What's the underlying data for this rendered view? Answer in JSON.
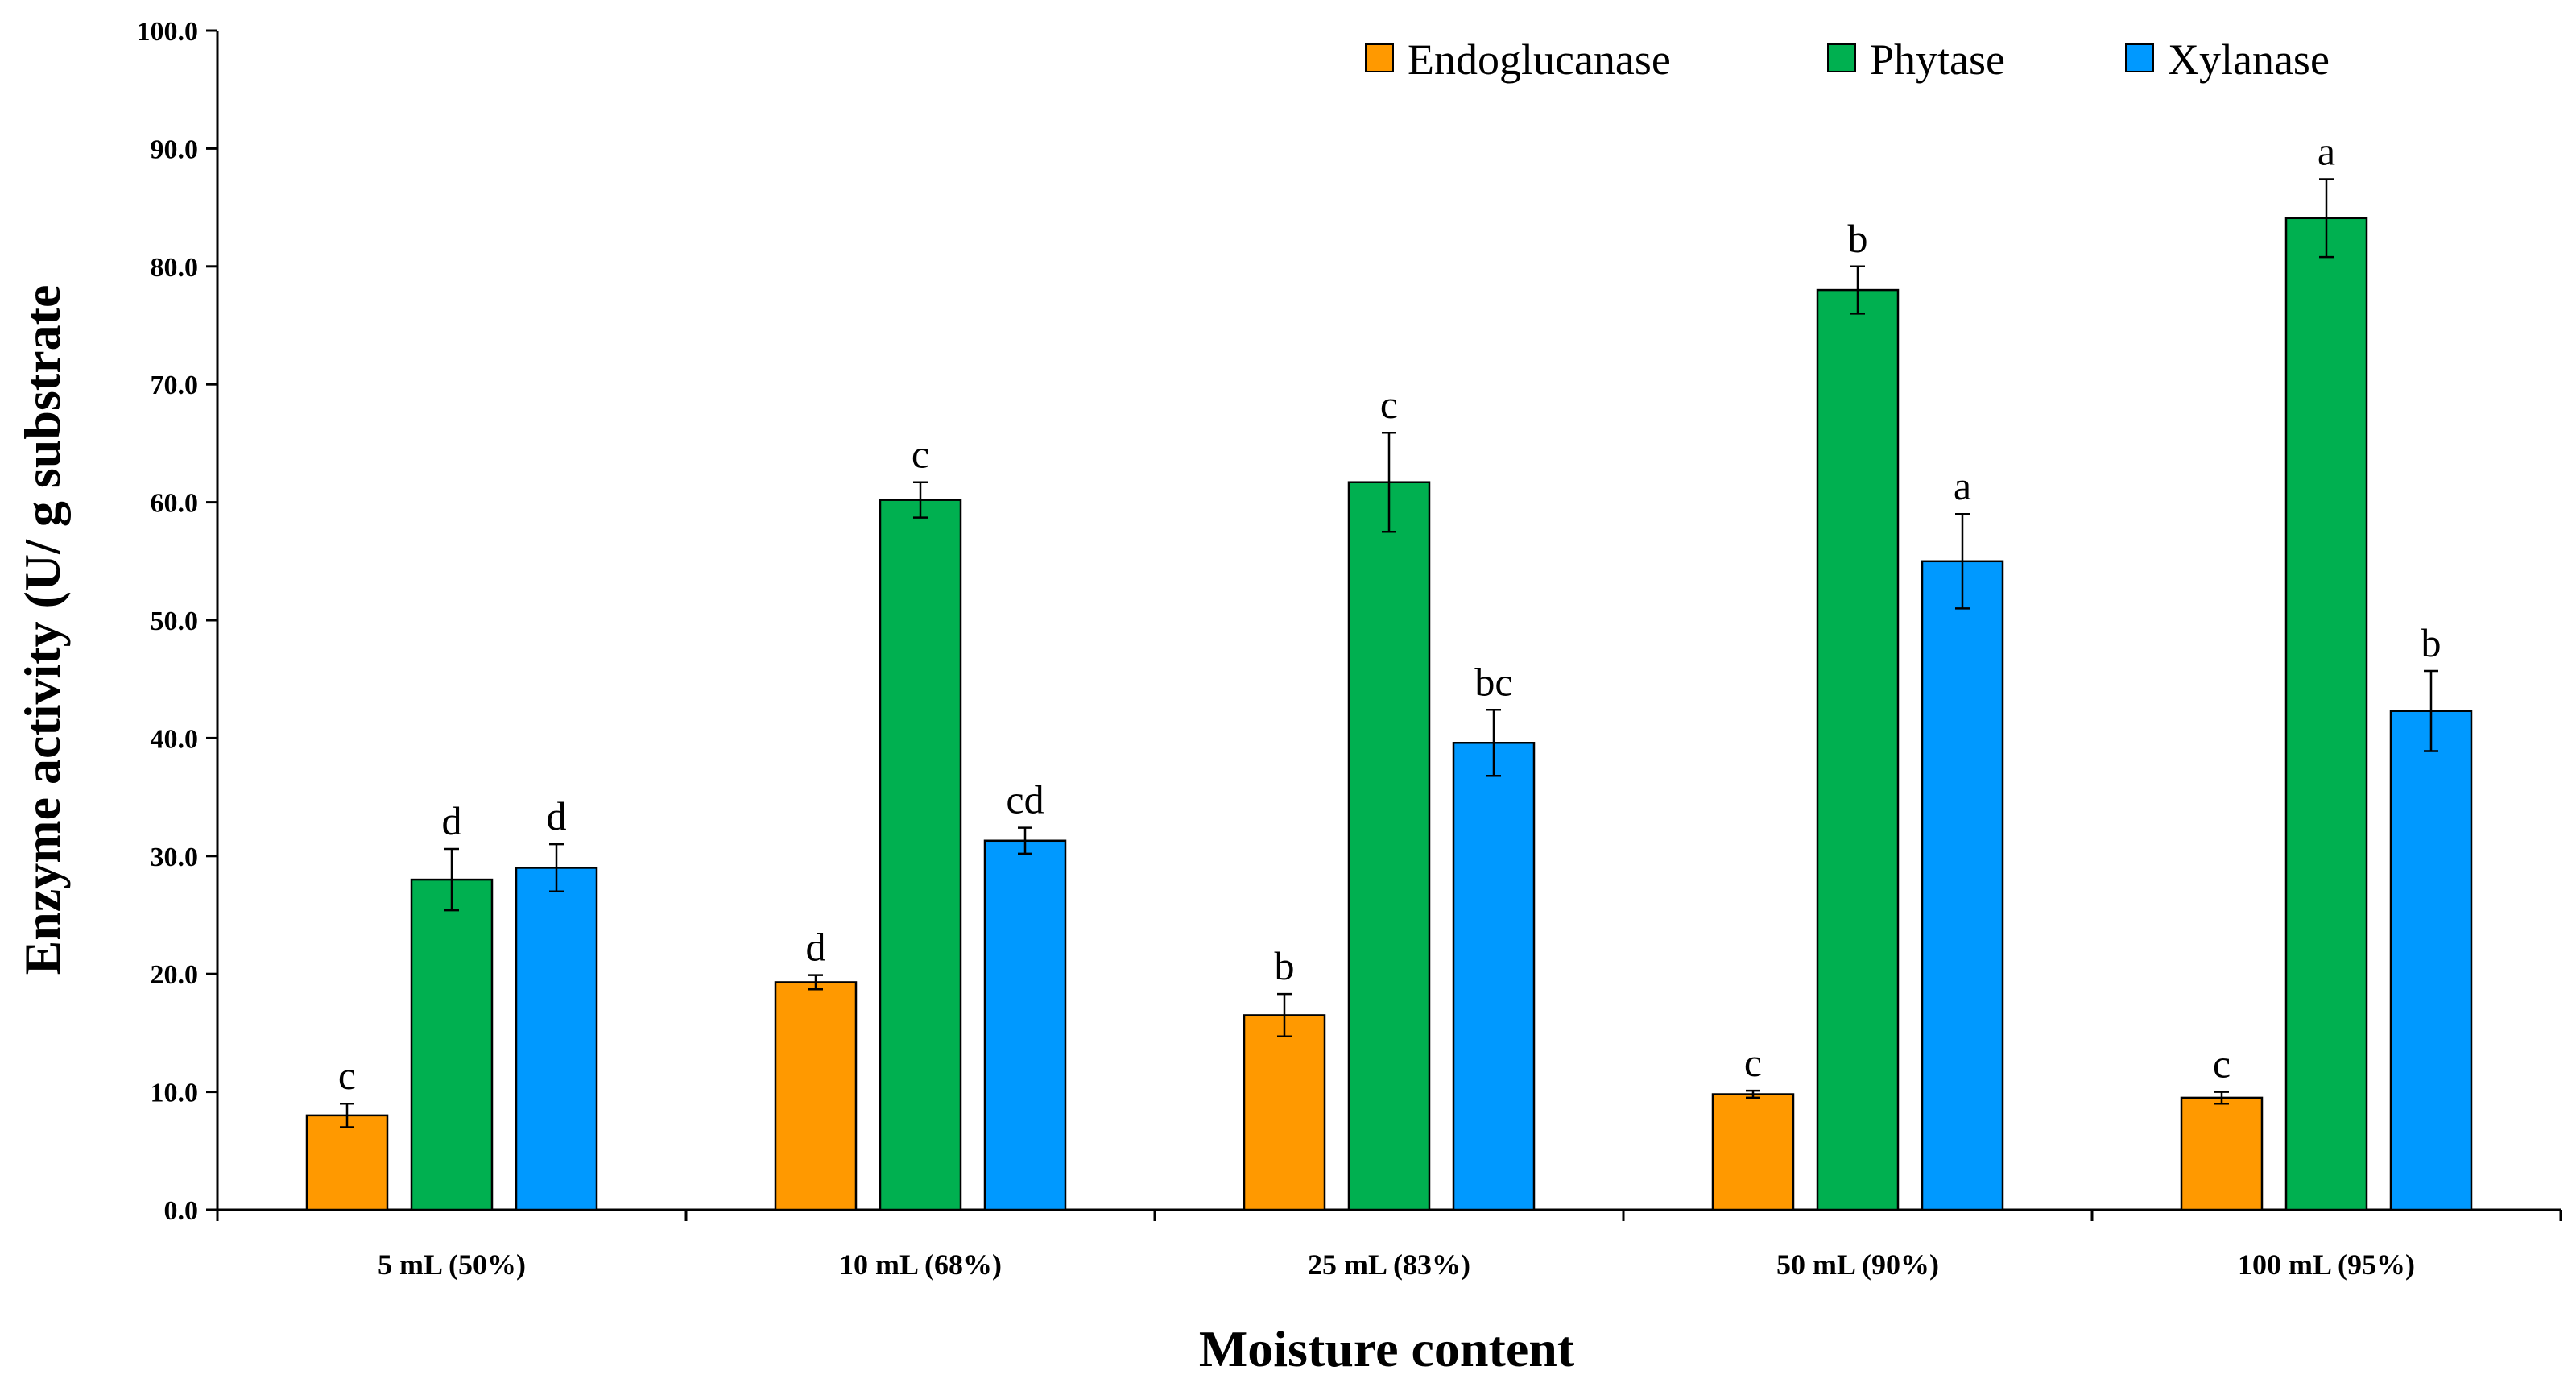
{
  "chart_data": {
    "type": "bar",
    "title": "",
    "xlabel": "Moisture content",
    "ylabel": "Enzyme activity (U/ g substrate",
    "ylim": [
      0,
      100
    ],
    "ytick_step": 10,
    "ytick_labels": [
      "0.0",
      "10.0",
      "20.0",
      "30.0",
      "40.0",
      "50.0",
      "60.0",
      "70.0",
      "80.0",
      "90.0",
      "100.0"
    ],
    "categories": [
      "5 mL (50%)",
      "10 mL (68%)",
      "25 mL (83%)",
      "50 mL (90%)",
      "100 mL (95%)"
    ],
    "legend_position": "top-right",
    "series": [
      {
        "name": "Endoglucanase",
        "color": "#FF9900",
        "values": [
          8.0,
          19.3,
          16.5,
          9.8,
          9.5
        ],
        "errors": [
          1.0,
          0.6,
          1.8,
          0.3,
          0.5
        ],
        "letters": [
          "c",
          "d",
          "b",
          "c",
          "c"
        ]
      },
      {
        "name": "Phytase",
        "color": "#00B050",
        "values": [
          28.0,
          60.2,
          61.7,
          78.0,
          84.1
        ],
        "errors": [
          2.6,
          1.5,
          4.2,
          2.0,
          3.3
        ],
        "letters": [
          "d",
          "c",
          "c",
          "b",
          "a"
        ]
      },
      {
        "name": "Xylanase",
        "color": "#0099FF",
        "values": [
          29.0,
          31.3,
          39.6,
          55.0,
          42.3
        ],
        "errors": [
          2.0,
          1.1,
          2.8,
          4.0,
          3.4
        ],
        "letters": [
          "d",
          "cd",
          "bc",
          "a",
          "b"
        ]
      }
    ]
  }
}
